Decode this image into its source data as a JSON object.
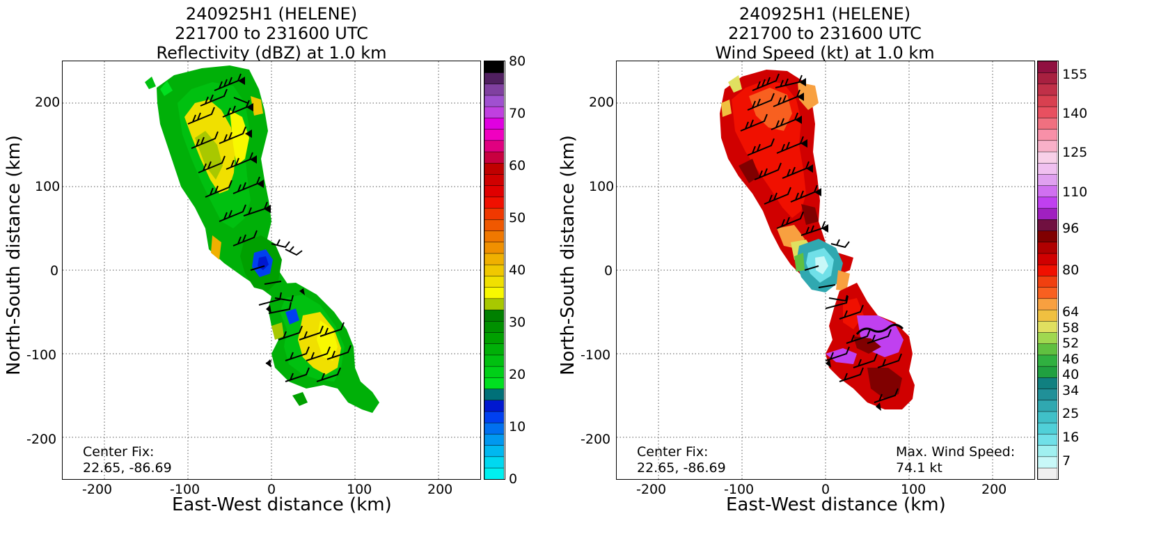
{
  "chart_data": [
    {
      "type": "heatmap",
      "title_lines": [
        "240925H1 (HELENE)",
        "221700 to 231600 UTC",
        "Reflectivity (dBZ) at 1.0 km"
      ],
      "xlabel": "East-West distance (km)",
      "ylabel": "North-South distance (km)",
      "xlim": [
        -250,
        250
      ],
      "ylim": [
        -250,
        250
      ],
      "xticks": [
        -200,
        -100,
        0,
        100,
        200
      ],
      "yticks": [
        -200,
        -100,
        0,
        100,
        200
      ],
      "grid": true,
      "colorbar": {
        "range": [
          0,
          80
        ],
        "ticks": [
          0,
          10,
          20,
          30,
          40,
          50,
          60,
          70,
          80
        ],
        "colors": [
          "#00f0f0",
          "#00d8f0",
          "#00b8f0",
          "#0098f0",
          "#0070f0",
          "#0040f0",
          "#0018d0",
          "#007078",
          "#00e020",
          "#00d018",
          "#00c010",
          "#00b008",
          "#00a000",
          "#009000",
          "#008000",
          "#a8c800",
          "#f8f800",
          "#f0e000",
          "#f0c800",
          "#f0b000",
          "#f09000",
          "#f07800",
          "#f05800",
          "#f03800",
          "#f01000",
          "#e00000",
          "#d00000",
          "#c00000",
          "#c80040",
          "#e00080",
          "#f000c0",
          "#e000e0",
          "#c040e0",
          "#a050d0",
          "#8040a0",
          "#502060",
          "#000000"
        ]
      },
      "annotations": [
        "Center Fix:",
        "22.65, -86.69"
      ]
    },
    {
      "type": "heatmap",
      "title_lines": [
        "240925H1 (HELENE)",
        "221700 to 231600 UTC",
        "Wind Speed (kt) at 1.0 km"
      ],
      "xlabel": "East-West distance (km)",
      "ylabel": "North-South distance (km)",
      "xlim": [
        -250,
        250
      ],
      "ylim": [
        -250,
        250
      ],
      "xticks": [
        -200,
        -100,
        0,
        100,
        200
      ],
      "yticks": [
        -200,
        -100,
        0,
        100,
        200
      ],
      "grid": true,
      "colorbar": {
        "range": [
          0,
          160
        ],
        "ticks": [
          7,
          16,
          25,
          34,
          40,
          46,
          52,
          58,
          64,
          80,
          96,
          110,
          125,
          140,
          155
        ],
        "colors": [
          "#f0f0f0",
          "#c8f8f8",
          "#a0f0f0",
          "#70e0e8",
          "#50d0d8",
          "#40c0c8",
          "#30a8b0",
          "#209098",
          "#108080",
          "#20a040",
          "#30b040",
          "#60c040",
          "#a0d850",
          "#e0e060",
          "#f0c040",
          "#f8a040",
          "#f86020",
          "#f04010",
          "#f01000",
          "#d00000",
          "#b00000",
          "#800000",
          "#701040",
          "#a020c0",
          "#c040f0",
          "#d070f0",
          "#e0a0f0",
          "#f0c0f0",
          "#f8d0e8",
          "#f8b0c8",
          "#f890a8",
          "#f07080",
          "#e85060",
          "#d84050",
          "#c03048",
          "#a82040",
          "#901040"
        ]
      },
      "annotations": [
        "Center Fix:",
        "22.65, -86.69",
        "Max. Wind Speed:",
        "74.1 kt"
      ]
    }
  ]
}
